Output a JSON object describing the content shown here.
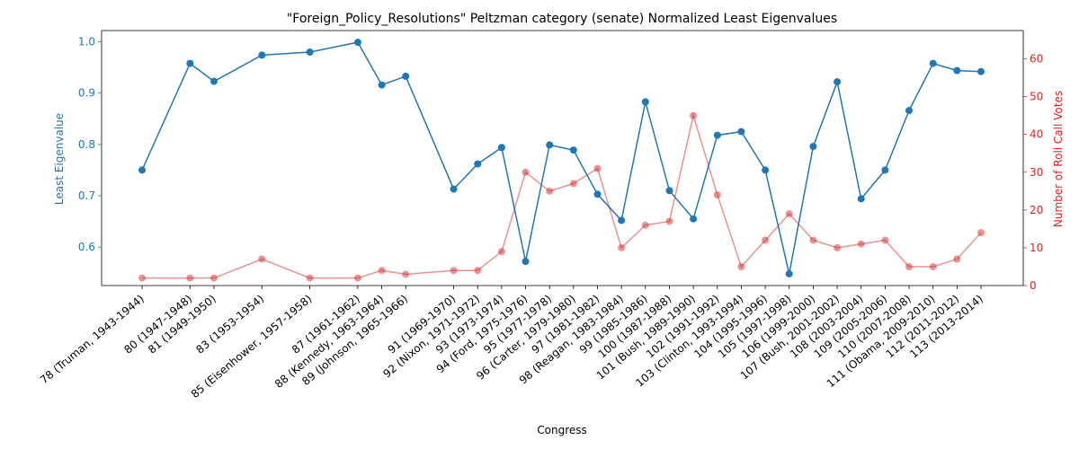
{
  "chart_data": {
    "type": "line",
    "title": "\"Foreign_Policy_Resolutions\" Peltzman category (senate) Normalized Least Eigenvalues",
    "xlabel": "Congress",
    "ylabel_left": "Least Eigenvalue",
    "ylabel_right": "Number of Roll Call Votes",
    "colors": {
      "left": "#1f77b4",
      "right": "#d62728"
    },
    "categories": [
      "78 (Truman, 1943-1944)",
      "80 (1947-1948)",
      "81 (1949-1950)",
      "83 (1953-1954)",
      "85 (Eisenhower, 1957-1958)",
      "87 (1961-1962)",
      "88 (Kennedy, 1963-1964)",
      "89 (Johnson, 1965-1966)",
      "91 (1969-1970)",
      "92 (Nixon, 1971-1972)",
      "93 (1973-1974)",
      "94 (Ford, 1975-1976)",
      "95 (1977-1978)",
      "96 (Carter, 1979-1980)",
      "97 (1981-1982)",
      "98 (Reagan, 1983-1984)",
      "99 (1985-1986)",
      "100 (1987-1988)",
      "101 (Bush, 1989-1990)",
      "102 (1991-1992)",
      "103 (Clinton, 1993-1994)",
      "104 (1995-1996)",
      "105 (1997-1998)",
      "106 (1999-2000)",
      "107 (Bush, 2001-2002)",
      "108 (2003-2004)",
      "109 (2005-2006)",
      "110 (2007-2008)",
      "111 (Obama, 2009-2010)",
      "112 (2011-2012)",
      "113 (2013-2014)"
    ],
    "x": [
      78,
      80,
      81,
      83,
      85,
      87,
      88,
      89,
      91,
      92,
      93,
      94,
      95,
      96,
      97,
      98,
      99,
      100,
      101,
      102,
      103,
      104,
      105,
      106,
      107,
      108,
      109,
      110,
      111,
      112,
      113
    ],
    "series": [
      {
        "axis": "left",
        "values": [
          0.75,
          0.958,
          0.923,
          0.974,
          0.98,
          0.999,
          0.916,
          0.933,
          0.713,
          0.762,
          0.794,
          0.572,
          0.799,
          0.789,
          0.703,
          0.652,
          0.883,
          0.71,
          0.655,
          0.818,
          0.825,
          0.75,
          0.548,
          0.796,
          0.922,
          0.694,
          0.75,
          0.866,
          0.958,
          0.944,
          0.942
        ]
      },
      {
        "axis": "right",
        "values": [
          2,
          2,
          2,
          7,
          2,
          2,
          4,
          3,
          4,
          4,
          9,
          30,
          25,
          27,
          31,
          10,
          16,
          17,
          45,
          24,
          5,
          12,
          19,
          12,
          10,
          11,
          12,
          5,
          5,
          7,
          14
        ]
      }
    ],
    "ylim_left": [
      0.525,
      1.022
    ],
    "yticks_left": [
      0.6,
      0.7,
      0.8,
      0.9,
      1.0
    ],
    "yticks_left_labels": [
      "0.6",
      "0.7",
      "0.8",
      "0.9",
      "1.0"
    ],
    "ylim_right": [
      0,
      67.5
    ],
    "yticks_right": [
      0,
      10,
      20,
      30,
      40,
      50,
      60
    ],
    "yticks_right_labels": [
      "0",
      "10",
      "20",
      "30",
      "40",
      "50",
      "60"
    ],
    "grid": false,
    "legend": "none"
  }
}
